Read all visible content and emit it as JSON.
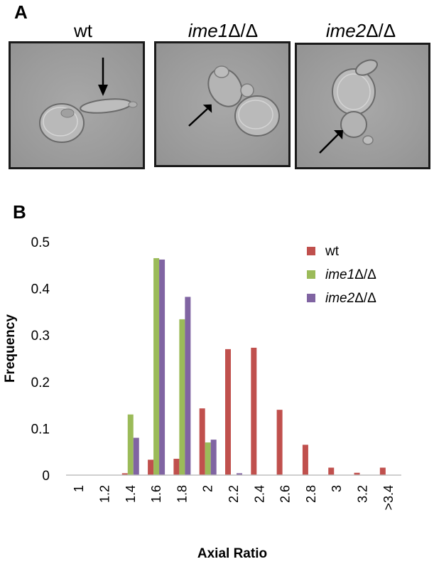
{
  "panel_a": {
    "letter": "A",
    "images": [
      {
        "label_text": "wt",
        "label_italic": ""
      },
      {
        "label_text": "",
        "label_italic": "ime1",
        "label_suffix": "Δ/Δ"
      },
      {
        "label_text": "",
        "label_italic": "ime2",
        "label_suffix": "Δ/Δ"
      }
    ]
  },
  "panel_b": {
    "letter": "B"
  },
  "chart_data": {
    "type": "bar",
    "xlabel": "Axial Ratio",
    "ylabel": "Frequency",
    "ylim": [
      0,
      0.5
    ],
    "yticks": [
      "0",
      "0.1",
      "0.2",
      "0.3",
      "0.4",
      "0.5"
    ],
    "categories": [
      "1",
      "1.2",
      "1.4",
      "1.6",
      "1.8",
      "2",
      "2.2",
      "2.4",
      "2.6",
      "2.8",
      "3",
      "3.2",
      ">3.4"
    ],
    "legend_position": "top-right",
    "series": [
      {
        "name": "wt",
        "name_italic": "",
        "name_suffix": "",
        "color": "#c0504d",
        "values": [
          0,
          0,
          0.004,
          0.033,
          0.035,
          0.143,
          0.27,
          0.273,
          0.14,
          0.065,
          0.016,
          0.005,
          0.016
        ]
      },
      {
        "name": "",
        "name_italic": "ime1",
        "name_suffix": "Δ/Δ",
        "color": "#9bbb59",
        "values": [
          0,
          0,
          0.13,
          0.465,
          0.334,
          0.07,
          0,
          0,
          0,
          0,
          0,
          0,
          0
        ]
      },
      {
        "name": "",
        "name_italic": "ime2",
        "name_suffix": "Δ/Δ",
        "color": "#8064a2",
        "values": [
          0,
          0,
          0.08,
          0.462,
          0.382,
          0.076,
          0.004,
          0,
          0,
          0,
          0,
          0,
          0
        ]
      }
    ]
  }
}
